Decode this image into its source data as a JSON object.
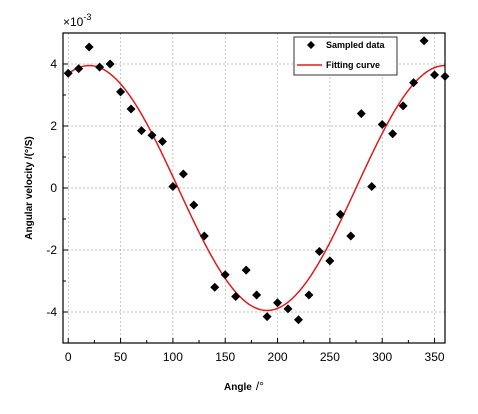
{
  "chart_data": {
    "type": "scatter",
    "xlabel": "Angle",
    "xlabel_unit": "/°",
    "ylabel": "Angular velocity  /(°/S)",
    "y_multiplier": "×10",
    "y_multiplier_exp": "-3",
    "xlim": [
      -5,
      360
    ],
    "ylim": [
      -5,
      5
    ],
    "x_ticks": [
      0,
      50,
      100,
      150,
      200,
      250,
      300,
      350
    ],
    "y_ticks": [
      -4,
      -2,
      0,
      2,
      4
    ],
    "grid": true,
    "legend_position": "top-right",
    "series": [
      {
        "name": "Sampled data",
        "kind": "scatter",
        "marker": "diamond",
        "color": "#000000",
        "x": [
          0,
          10,
          20,
          30,
          40,
          50,
          60,
          70,
          80,
          90,
          100,
          110,
          120,
          130,
          140,
          150,
          160,
          170,
          180,
          190,
          200,
          210,
          220,
          230,
          240,
          250,
          260,
          270,
          280,
          290,
          300,
          310,
          320,
          330,
          340,
          350,
          360
        ],
        "y": [
          3.7,
          3.85,
          4.55,
          3.9,
          4.0,
          3.1,
          2.55,
          1.85,
          1.7,
          1.5,
          0.05,
          0.45,
          -0.55,
          -1.55,
          -3.2,
          -2.8,
          -3.5,
          -2.65,
          -3.45,
          -4.15,
          -3.7,
          -3.9,
          -4.25,
          -3.45,
          -2.05,
          -2.35,
          -0.85,
          -1.55,
          2.4,
          0.05,
          2.05,
          1.75,
          2.65,
          3.4,
          4.75,
          3.65,
          3.6
        ]
      },
      {
        "name": "Fitting curve",
        "kind": "line",
        "color": "#e31a1c",
        "amplitude": 3.95,
        "phase_deg": 20,
        "period_deg": 340
      }
    ]
  }
}
